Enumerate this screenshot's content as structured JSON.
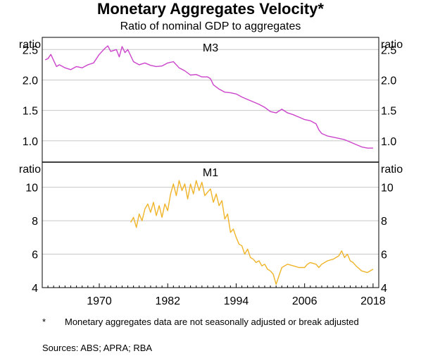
{
  "title": "Monetary Aggregates Velocity*",
  "subtitle": "Ratio of nominal GDP to aggregates",
  "footnote": {
    "marker": "*",
    "text": "Monetary aggregates data are not seasonally adjusted or break adjusted"
  },
  "sources": "Sources:   ABS; APRA; RBA",
  "colors": {
    "m3": "#cc44cc",
    "m1": "#f0b429",
    "grid": "#c8c8c8",
    "axis": "#000000"
  },
  "chart_data": [
    {
      "type": "line",
      "panel_title": "M3",
      "ylabel_left": "ratio",
      "ylabel_right": "ratio",
      "ylim": [
        0.65,
        2.7
      ],
      "yticks": [
        1.0,
        1.5,
        2.0,
        2.5
      ],
      "ytick_labels": [
        "1.0",
        "1.5",
        "2.0",
        "2.5"
      ],
      "xlim": [
        1960,
        2019
      ],
      "grid": true,
      "series": [
        {
          "color": "#cc44cc",
          "x": [
            1960.5,
            1961,
            1961.5,
            1962,
            1962.5,
            1963,
            1964,
            1965,
            1966,
            1967,
            1968,
            1969,
            1970,
            1971,
            1971.5,
            1972,
            1973,
            1973.5,
            1974,
            1974.5,
            1975,
            1976,
            1977,
            1978,
            1979,
            1980,
            1981,
            1982,
            1983,
            1984,
            1985,
            1986,
            1987,
            1988,
            1989,
            1989.5,
            1990,
            1991,
            1992,
            1993,
            1994,
            1995,
            1996,
            1997,
            1998,
            1999,
            2000,
            2001,
            2002,
            2003,
            2004,
            2005,
            2006,
            2007,
            2008,
            2008.5,
            2009,
            2010,
            2011,
            2012,
            2013,
            2014,
            2015,
            2016,
            2017,
            2018
          ],
          "y": [
            2.33,
            2.35,
            2.42,
            2.32,
            2.22,
            2.25,
            2.2,
            2.17,
            2.22,
            2.2,
            2.25,
            2.28,
            2.42,
            2.52,
            2.56,
            2.47,
            2.5,
            2.38,
            2.55,
            2.45,
            2.5,
            2.3,
            2.25,
            2.28,
            2.24,
            2.22,
            2.23,
            2.28,
            2.3,
            2.2,
            2.15,
            2.08,
            2.09,
            2.05,
            2.05,
            2.02,
            1.92,
            1.85,
            1.8,
            1.79,
            1.77,
            1.72,
            1.68,
            1.64,
            1.6,
            1.55,
            1.48,
            1.46,
            1.52,
            1.46,
            1.43,
            1.39,
            1.35,
            1.33,
            1.28,
            1.18,
            1.12,
            1.08,
            1.06,
            1.04,
            1.02,
            0.98,
            0.94,
            0.9,
            0.88,
            0.88
          ]
        }
      ]
    },
    {
      "type": "line",
      "panel_title": "M1",
      "ylabel_left": "ratio",
      "ylabel_right": "ratio",
      "ylim": [
        4,
        11.5
      ],
      "yticks": [
        4,
        6,
        8,
        10
      ],
      "ytick_labels": [
        "4",
        "6",
        "8",
        "10"
      ],
      "xlim": [
        1960,
        2019
      ],
      "xticks": [
        1970,
        1982,
        1994,
        2006,
        2018
      ],
      "xtick_labels": [
        "1970",
        "1982",
        "1994",
        "2006",
        "2018"
      ],
      "grid": true,
      "series": [
        {
          "color": "#f0b429",
          "x": [
            1975.5,
            1976,
            1976.5,
            1977,
            1977.5,
            1978,
            1978.5,
            1979,
            1979.5,
            1980,
            1980.5,
            1981,
            1981.5,
            1982,
            1982.5,
            1983,
            1983.5,
            1984,
            1984.5,
            1985,
            1985.5,
            1986,
            1986.5,
            1987,
            1987.5,
            1988,
            1988.5,
            1989,
            1989.5,
            1990,
            1990.5,
            1991,
            1991.5,
            1992,
            1992.5,
            1993,
            1993.5,
            1994,
            1994.5,
            1995,
            1995.5,
            1996,
            1996.5,
            1997,
            1997.5,
            1998,
            1998.5,
            1999,
            1999.5,
            2000,
            2000.5,
            2001,
            2001.5,
            2002,
            2003,
            2004,
            2005,
            2006,
            2006.5,
            2007,
            2008,
            2008.5,
            2009,
            2010,
            2011,
            2012,
            2012.5,
            2013,
            2013.5,
            2014,
            2014.5,
            2015,
            2016,
            2017,
            2018
          ],
          "y": [
            7.9,
            8.2,
            7.6,
            8.4,
            8.0,
            8.7,
            9.0,
            8.5,
            9.1,
            8.3,
            8.9,
            8.2,
            9.0,
            8.6,
            9.6,
            10.2,
            9.5,
            10.4,
            9.8,
            10.2,
            9.3,
            10.2,
            9.6,
            10.4,
            9.8,
            10.3,
            9.5,
            9.7,
            9.9,
            9.1,
            9.6,
            8.9,
            9.2,
            8.1,
            8.4,
            7.3,
            7.5,
            7.0,
            6.6,
            6.5,
            6.0,
            6.3,
            5.8,
            5.7,
            5.5,
            5.6,
            5.3,
            5.4,
            5.1,
            5.0,
            4.8,
            4.2,
            4.7,
            5.2,
            5.4,
            5.3,
            5.2,
            5.2,
            5.4,
            5.5,
            5.4,
            5.2,
            5.4,
            5.6,
            5.7,
            5.9,
            6.2,
            5.8,
            6.0,
            5.6,
            5.5,
            5.3,
            5.0,
            4.9,
            5.1
          ]
        }
      ]
    }
  ]
}
